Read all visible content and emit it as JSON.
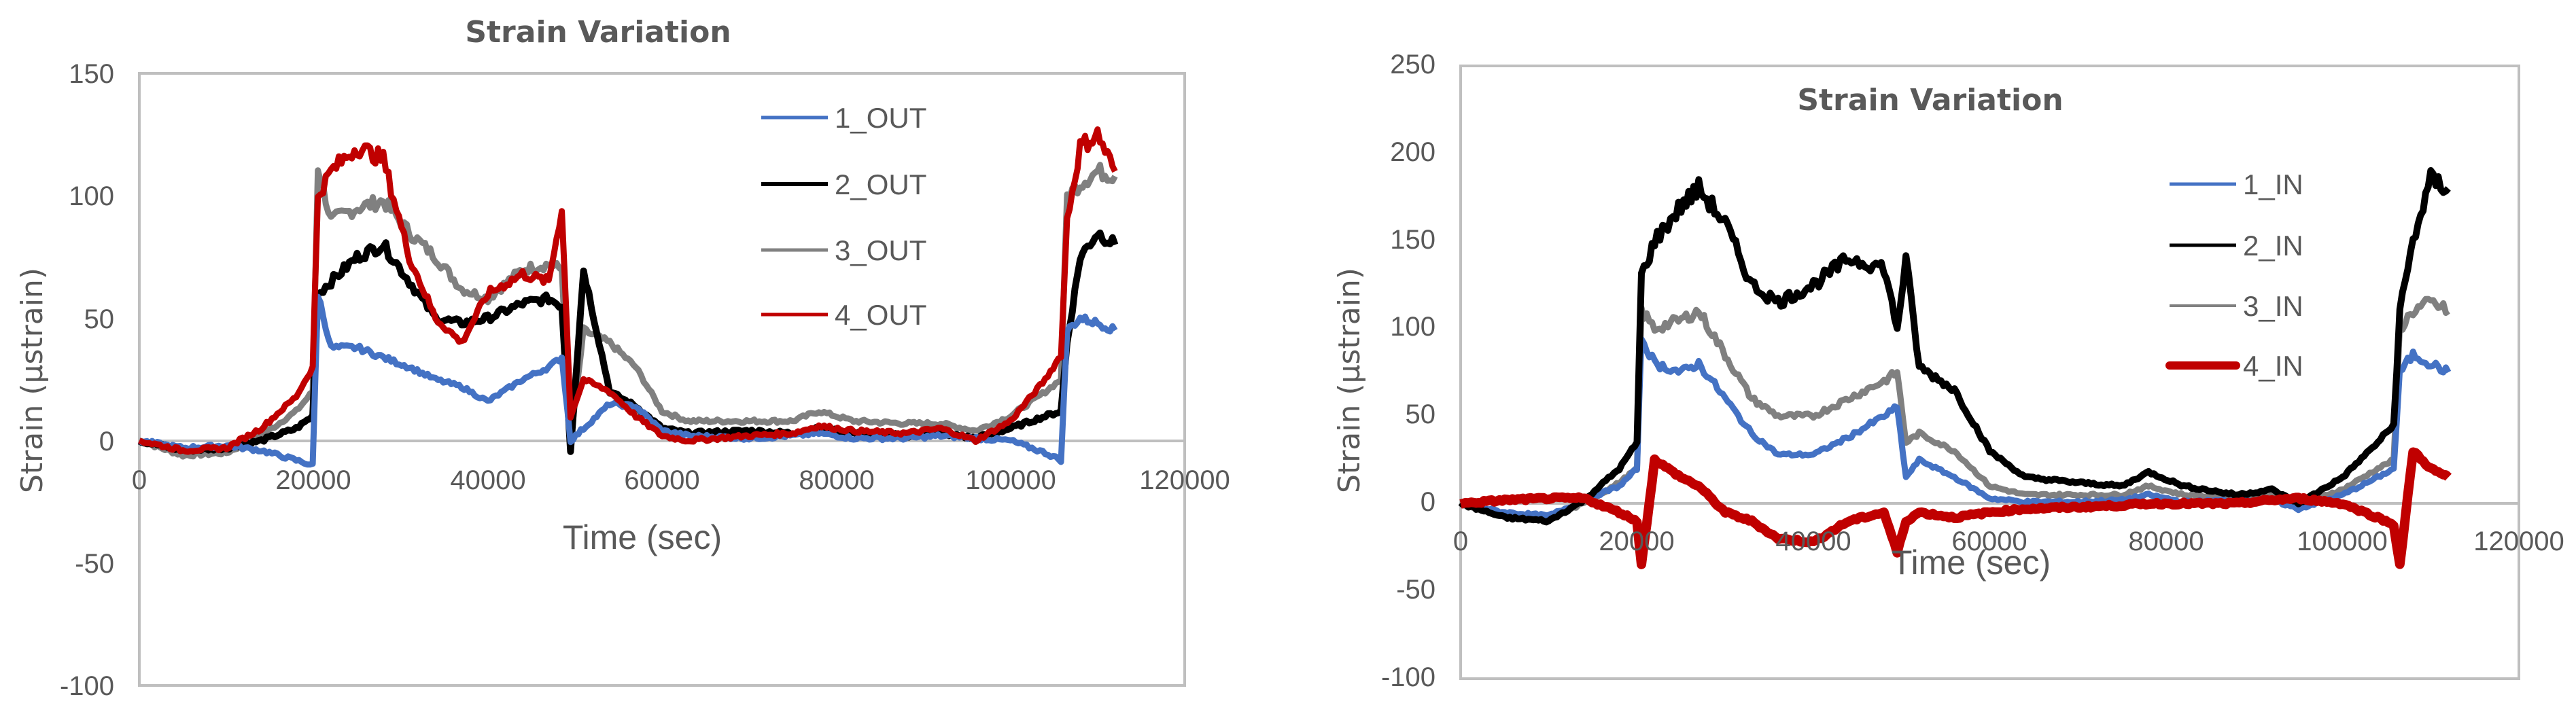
{
  "chart_data": [
    {
      "type": "line",
      "title": "Strain Variation",
      "xlabel": "Time (sec)",
      "ylabel": "Strain (µstrain)",
      "xlim": [
        0,
        120000
      ],
      "ylim": [
        -100,
        150
      ],
      "x_ticks": [
        "0",
        "20000",
        "40000",
        "60000",
        "80000",
        "100000",
        "120000"
      ],
      "y_ticks": [
        "150",
        "100",
        "50",
        "0",
        "-50",
        "-100"
      ],
      "grid": false,
      "legend_position": "upper-right-inside",
      "x": [
        0,
        5000,
        10000,
        14000,
        18000,
        19900,
        20500,
        22000,
        25000,
        28000,
        31000,
        34000,
        37000,
        40000,
        44000,
        47000,
        48500,
        49500,
        51000,
        54000,
        57000,
        60000,
        63000,
        70000,
        75000,
        78000,
        82000,
        88000,
        92000,
        96000,
        100000,
        104000,
        105800,
        106500,
        108000,
        110000,
        112000
      ],
      "series": [
        {
          "name": "1_OUT",
          "color": "#4472C4",
          "values": [
            0,
            -3,
            -2,
            -4,
            -8,
            -10,
            60,
            38,
            38,
            34,
            30,
            25,
            22,
            16,
            25,
            30,
            34,
            0,
            5,
            15,
            14,
            4,
            2,
            1,
            2,
            3,
            1,
            1,
            2,
            1,
            0,
            -5,
            -8,
            45,
            50,
            48,
            45
          ]
        },
        {
          "name": "2_OUT",
          "color": "#000000",
          "values": [
            0,
            -4,
            -3,
            0,
            5,
            10,
            60,
            65,
            75,
            80,
            65,
            50,
            48,
            50,
            56,
            58,
            55,
            -4,
            70,
            20,
            14,
            5,
            3,
            4,
            3,
            5,
            3,
            2,
            3,
            1,
            5,
            10,
            12,
            40,
            75,
            85,
            80
          ]
        },
        {
          "name": "3_OUT",
          "color": "#808080",
          "values": [
            0,
            -6,
            -5,
            2,
            12,
            20,
            112,
            90,
            95,
            98,
            85,
            75,
            62,
            58,
            70,
            72,
            70,
            0,
            45,
            40,
            30,
            12,
            8,
            8,
            8,
            12,
            8,
            7,
            7,
            4,
            10,
            20,
            25,
            100,
            105,
            110,
            108
          ]
        },
        {
          "name": "4_OUT",
          "color": "#C00000",
          "values": [
            0,
            -4,
            -3,
            5,
            18,
            30,
            100,
            110,
            120,
            115,
            75,
            50,
            40,
            60,
            68,
            65,
            95,
            10,
            25,
            20,
            10,
            2,
            0,
            2,
            3,
            6,
            4,
            3,
            5,
            0,
            8,
            25,
            35,
            90,
            120,
            125,
            110
          ]
        }
      ]
    },
    {
      "type": "line",
      "title": "Strain Variation",
      "xlabel": "Time (sec)",
      "ylabel": "Strain (µstrain)",
      "xlim": [
        0,
        120000
      ],
      "ylim": [
        -100,
        250
      ],
      "x_ticks": [
        "0",
        "20000",
        "40000",
        "60000",
        "80000",
        "100000",
        "120000"
      ],
      "y_ticks": [
        "250",
        "200",
        "150",
        "100",
        "50",
        "0",
        "-50",
        "-100"
      ],
      "grid": false,
      "legend_position": "upper-right-inside",
      "x": [
        0,
        5000,
        10000,
        14000,
        18000,
        20000,
        20500,
        22000,
        25000,
        27000,
        30000,
        33000,
        36000,
        40000,
        44000,
        48000,
        49500,
        50500,
        52000,
        56000,
        60000,
        64000,
        70000,
        75000,
        78000,
        82000,
        88000,
        92000,
        95000,
        100000,
        104000,
        105800,
        106500,
        108000,
        110000,
        112000
      ],
      "series": [
        {
          "name": "1_IN",
          "color": "#4472C4",
          "values": [
            0,
            -5,
            -7,
            2,
            10,
            20,
            95,
            80,
            75,
            80,
            60,
            40,
            28,
            28,
            38,
            50,
            55,
            15,
            25,
            15,
            3,
            1,
            1,
            2,
            5,
            1,
            2,
            2,
            -3,
            5,
            15,
            20,
            75,
            85,
            80,
            75
          ]
        },
        {
          "name": "2_IN",
          "color": "#000000",
          "values": [
            0,
            -8,
            -10,
            2,
            20,
            35,
            130,
            150,
            170,
            180,
            160,
            125,
            115,
            125,
            140,
            135,
            100,
            140,
            78,
            65,
            30,
            15,
            12,
            10,
            18,
            10,
            5,
            8,
            0,
            15,
            35,
            45,
            110,
            150,
            185,
            180
          ]
        },
        {
          "name": "3_IN",
          "color": "#808080",
          "values": [
            0,
            -6,
            -8,
            0,
            12,
            20,
            110,
            100,
            105,
            110,
            85,
            60,
            50,
            50,
            60,
            70,
            75,
            35,
            40,
            30,
            10,
            5,
            5,
            5,
            10,
            5,
            3,
            5,
            0,
            8,
            20,
            25,
            100,
            110,
            115,
            110
          ]
        },
        {
          "name": "4_IN",
          "color": "#C00000",
          "values": [
            0,
            2,
            3,
            3,
            -5,
            -10,
            -35,
            25,
            15,
            10,
            -5,
            -10,
            -20,
            -22,
            -10,
            -5,
            -28,
            -10,
            -5,
            -8,
            -5,
            -3,
            -2,
            -1,
            0,
            0,
            0,
            2,
            3,
            0,
            -8,
            -12,
            -35,
            30,
            20,
            15
          ]
        }
      ]
    }
  ],
  "charts": [
    {
      "title": "Strain Variation",
      "xlabel": "Time (sec)",
      "ylabel": "Strain (µstrain)",
      "legend": [
        "1_OUT",
        "2_OUT",
        "3_OUT",
        "4_OUT"
      ],
      "y_ticks": [
        "150",
        "100",
        "50",
        "0",
        "-50",
        "-100"
      ],
      "x_ticks": [
        "0",
        "20000",
        "40000",
        "60000",
        "80000",
        "100000",
        "120000"
      ]
    },
    {
      "title": "Strain Variation",
      "xlabel": "Time (sec)",
      "ylabel": "Strain (µstrain)",
      "legend": [
        "1_IN",
        "2_IN",
        "3_IN",
        "4_IN"
      ],
      "y_ticks": [
        "250",
        "200",
        "150",
        "100",
        "50",
        "0",
        "-50",
        "-100"
      ],
      "x_ticks": [
        "0",
        "20000",
        "40000",
        "60000",
        "80000",
        "100000",
        "120000"
      ]
    }
  ]
}
